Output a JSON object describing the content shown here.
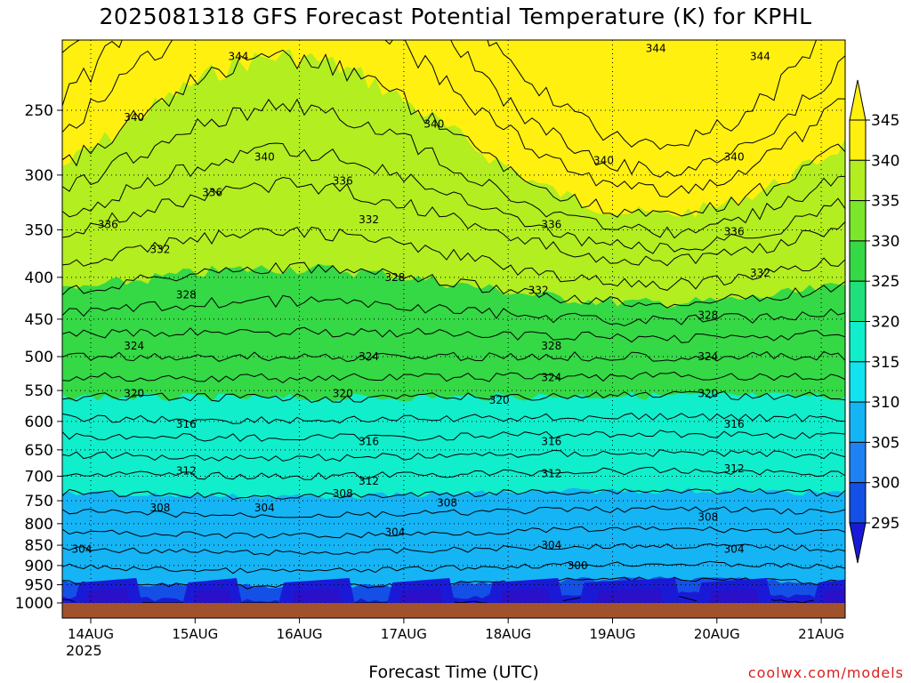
{
  "title": "2025081318 GFS Forecast Potential Temperature (K) for KPHL",
  "xtitle": "Forecast Time (UTC)",
  "credit": "coolwx.com/models",
  "year_label": "2025",
  "colors": {
    "ground": "#a0522d",
    "band_295": "#1a1ad6",
    "band_300": "#1550e6",
    "band_305": "#1f82f2",
    "band_310": "#15b4f5",
    "band_315": "#13e3ef",
    "band_320": "#10eecc",
    "band_325": "#1fe07a",
    "band_330": "#35d845",
    "band_335": "#7be62a",
    "band_340": "#b2ee20",
    "band_345": "#fff010"
  },
  "chart_data": {
    "type": "heatmap",
    "title": "2025081318 GFS Forecast Potential Temperature (K) for KPHL",
    "xlabel": "Forecast Time (UTC)",
    "ylabel": "",
    "x_ticks": [
      "14AUG",
      "15AUG",
      "16AUG",
      "17AUG",
      "18AUG",
      "19AUG",
      "20AUG",
      "21AUG"
    ],
    "y_ticks": [
      250,
      300,
      350,
      400,
      450,
      500,
      550,
      600,
      650,
      700,
      750,
      800,
      850,
      900,
      950,
      1000
    ],
    "y_axis": {
      "scale": "log",
      "inverted": true,
      "range": [
        1000,
        200
      ],
      "unit": "hPa"
    },
    "colorbar": {
      "levels": [
        295,
        300,
        305,
        310,
        315,
        320,
        325,
        330,
        335,
        340,
        345
      ],
      "colors": [
        "#1a1ad6",
        "#1550e6",
        "#1f82f2",
        "#15b4f5",
        "#13e3ef",
        "#10eecc",
        "#1fe07a",
        "#35d845",
        "#7be62a",
        "#b2ee20",
        "#fff010"
      ],
      "extend": "both"
    },
    "contour_labels": [
      {
        "text": "344",
        "time": "15AUG 12Z",
        "pressure": 215
      },
      {
        "text": "344",
        "time": "19AUG 12Z",
        "pressure": 210
      },
      {
        "text": "344",
        "time": "20AUG 12Z",
        "pressure": 215
      },
      {
        "text": "340",
        "time": "14AUG 12Z",
        "pressure": 255
      },
      {
        "text": "340",
        "time": "17AUG 09Z",
        "pressure": 260
      },
      {
        "text": "340",
        "time": "15AUG 18Z",
        "pressure": 285
      },
      {
        "text": "340",
        "time": "19AUG 00Z",
        "pressure": 288
      },
      {
        "text": "340",
        "time": "20AUG 06Z",
        "pressure": 285
      },
      {
        "text": "336",
        "time": "15AUG 06Z",
        "pressure": 315
      },
      {
        "text": "336",
        "time": "16AUG 12Z",
        "pressure": 305
      },
      {
        "text": "336",
        "time": "14AUG 06Z",
        "pressure": 345
      },
      {
        "text": "336",
        "time": "18AUG 12Z",
        "pressure": 345
      },
      {
        "text": "336",
        "time": "20AUG 06Z",
        "pressure": 352
      },
      {
        "text": "332",
        "time": "14AUG 18Z",
        "pressure": 370
      },
      {
        "text": "332",
        "time": "16AUG 18Z",
        "pressure": 340
      },
      {
        "text": "332",
        "time": "18AUG 09Z",
        "pressure": 415
      },
      {
        "text": "332",
        "time": "20AUG 12Z",
        "pressure": 395
      },
      {
        "text": "328",
        "time": "15AUG 00Z",
        "pressure": 420
      },
      {
        "text": "328",
        "time": "17AUG 00Z",
        "pressure": 400
      },
      {
        "text": "328",
        "time": "18AUG 12Z",
        "pressure": 485
      },
      {
        "text": "328",
        "time": "20AUG 00Z",
        "pressure": 445
      },
      {
        "text": "324",
        "time": "14AUG 12Z",
        "pressure": 485
      },
      {
        "text": "324",
        "time": "16AUG 18Z",
        "pressure": 500
      },
      {
        "text": "324",
        "time": "18AUG 12Z",
        "pressure": 530
      },
      {
        "text": "324",
        "time": "20AUG 00Z",
        "pressure": 500
      },
      {
        "text": "320",
        "time": "14AUG 12Z",
        "pressure": 555
      },
      {
        "text": "320",
        "time": "16AUG 12Z",
        "pressure": 555
      },
      {
        "text": "320",
        "time": "18AUG 00Z",
        "pressure": 565
      },
      {
        "text": "320",
        "time": "20AUG 00Z",
        "pressure": 555
      },
      {
        "text": "316",
        "time": "15AUG 00Z",
        "pressure": 605
      },
      {
        "text": "316",
        "time": "16AUG 18Z",
        "pressure": 635
      },
      {
        "text": "316",
        "time": "18AUG 12Z",
        "pressure": 635
      },
      {
        "text": "316",
        "time": "20AUG 06Z",
        "pressure": 605
      },
      {
        "text": "312",
        "time": "15AUG 00Z",
        "pressure": 690
      },
      {
        "text": "312",
        "time": "16AUG 18Z",
        "pressure": 710
      },
      {
        "text": "312",
        "time": "18AUG 12Z",
        "pressure": 695
      },
      {
        "text": "312",
        "time": "20AUG 06Z",
        "pressure": 685
      },
      {
        "text": "308",
        "time": "14AUG 18Z",
        "pressure": 765
      },
      {
        "text": "308",
        "time": "16AUG 12Z",
        "pressure": 735
      },
      {
        "text": "308",
        "time": "17AUG 12Z",
        "pressure": 755
      },
      {
        "text": "308",
        "time": "20AUG 00Z",
        "pressure": 785
      },
      {
        "text": "304",
        "time": "14AUG 00Z",
        "pressure": 860
      },
      {
        "text": "304",
        "time": "15AUG 18Z",
        "pressure": 765
      },
      {
        "text": "304",
        "time": "17AUG 00Z",
        "pressure": 820
      },
      {
        "text": "304",
        "time": "18AUG 12Z",
        "pressure": 850
      },
      {
        "text": "304",
        "time": "20AUG 06Z",
        "pressure": 860
      },
      {
        "text": "300",
        "time": "18AUG 18Z",
        "pressure": 900
      }
    ]
  }
}
